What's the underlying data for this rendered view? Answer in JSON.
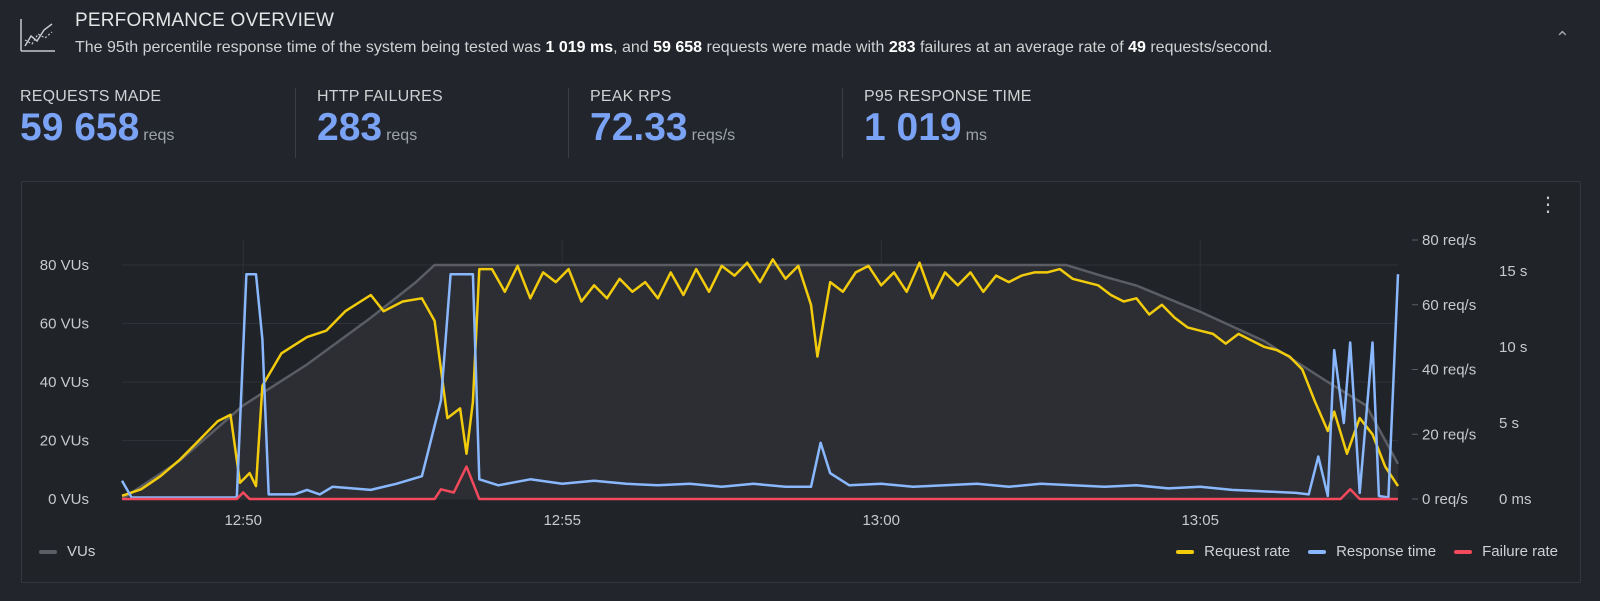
{
  "header": {
    "title": "PERFORMANCE OVERVIEW",
    "summary_parts": [
      {
        "text": "The 95th percentile response time of the system being tested was ",
        "bold": false
      },
      {
        "text": "1 019 ms",
        "bold": true
      },
      {
        "text": ", and ",
        "bold": false
      },
      {
        "text": "59 658",
        "bold": true
      },
      {
        "text": " requests were made with ",
        "bold": false
      },
      {
        "text": "283",
        "bold": true
      },
      {
        "text": " failures at an average rate of ",
        "bold": false
      },
      {
        "text": "49",
        "bold": true
      },
      {
        "text": " requests/second.",
        "bold": false
      }
    ],
    "collapse_icon": "chevron-up-icon",
    "icon": "line-chart-icon"
  },
  "stats": [
    {
      "label": "REQUESTS MADE",
      "value": "59 658",
      "unit": "reqs"
    },
    {
      "label": "HTTP FAILURES",
      "value": "283",
      "unit": "reqs"
    },
    {
      "label": "PEAK RPS",
      "value": "72.33",
      "unit": "reqs/s"
    },
    {
      "label": "P95 RESPONSE TIME",
      "value": "1 019",
      "unit": "ms"
    }
  ],
  "colors": {
    "accent": "#7ba3f5",
    "vus": "#5a5d63",
    "request_rate": "#f2cc0c",
    "response_time": "#8ab8ff",
    "failure_rate": "#f2495c"
  },
  "chart_data": {
    "type": "line",
    "x_ticks": [
      "12:50",
      "12:55",
      "13:00",
      "13:05"
    ],
    "x_tick_minutes": [
      50,
      55,
      60,
      65
    ],
    "x_range_minutes": [
      48.1,
      68.1
    ],
    "y_left": {
      "ticks": [
        "0 VUs",
        "20 VUs",
        "40 VUs",
        "60 VUs",
        "80 VUs"
      ],
      "range": [
        0,
        80
      ]
    },
    "y_right_rate": {
      "ticks": [
        "0 req/s",
        "20 req/s",
        "40 req/s",
        "60 req/s",
        "80 req/s"
      ],
      "range": [
        0,
        80
      ]
    },
    "y_right_time": {
      "ticks": [
        "0 ms",
        "5 s",
        "10 s",
        "15 s"
      ],
      "range_seconds": [
        0,
        15.6
      ]
    },
    "grid": true,
    "series": [
      {
        "name": "VUs",
        "axis": "left",
        "area": true,
        "points": [
          [
            48.1,
            0
          ],
          [
            49,
            13
          ],
          [
            50,
            32
          ],
          [
            51,
            46
          ],
          [
            52,
            62
          ],
          [
            52.7,
            74
          ],
          [
            53,
            80
          ],
          [
            60,
            80
          ],
          [
            62.9,
            80
          ],
          [
            63.5,
            76
          ],
          [
            64,
            73
          ],
          [
            65,
            64
          ],
          [
            66,
            54
          ],
          [
            67,
            40
          ],
          [
            67.6,
            32
          ],
          [
            68.1,
            12
          ]
        ]
      },
      {
        "name": "Request rate",
        "axis": "right_rate",
        "points": [
          [
            48.1,
            1
          ],
          [
            48.4,
            3
          ],
          [
            48.7,
            7
          ],
          [
            49,
            12
          ],
          [
            49.3,
            18
          ],
          [
            49.6,
            24
          ],
          [
            49.8,
            26
          ],
          [
            49.95,
            5
          ],
          [
            50.1,
            8
          ],
          [
            50.2,
            4
          ],
          [
            50.3,
            35
          ],
          [
            50.6,
            45
          ],
          [
            51,
            50
          ],
          [
            51.3,
            52
          ],
          [
            51.6,
            58
          ],
          [
            52,
            63
          ],
          [
            52.2,
            58
          ],
          [
            52.5,
            61
          ],
          [
            52.8,
            62
          ],
          [
            53,
            55
          ],
          [
            53.1,
            40
          ],
          [
            53.2,
            25
          ],
          [
            53.4,
            28
          ],
          [
            53.5,
            14
          ],
          [
            53.6,
            30
          ],
          [
            53.7,
            71
          ],
          [
            53.9,
            71
          ],
          [
            54.1,
            64
          ],
          [
            54.3,
            72
          ],
          [
            54.5,
            62
          ],
          [
            54.7,
            70
          ],
          [
            54.9,
            67
          ],
          [
            55.1,
            71
          ],
          [
            55.3,
            61
          ],
          [
            55.5,
            66
          ],
          [
            55.7,
            62
          ],
          [
            55.9,
            68
          ],
          [
            56.1,
            64
          ],
          [
            56.3,
            67
          ],
          [
            56.5,
            62
          ],
          [
            56.7,
            70
          ],
          [
            56.9,
            63
          ],
          [
            57.1,
            71
          ],
          [
            57.3,
            64
          ],
          [
            57.5,
            72
          ],
          [
            57.7,
            69
          ],
          [
            57.9,
            73
          ],
          [
            58.1,
            67
          ],
          [
            58.3,
            74
          ],
          [
            58.5,
            68
          ],
          [
            58.7,
            72
          ],
          [
            58.9,
            60
          ],
          [
            59,
            44
          ],
          [
            59.2,
            67
          ],
          [
            59.4,
            64
          ],
          [
            59.6,
            70
          ],
          [
            59.8,
            72
          ],
          [
            60,
            66
          ],
          [
            60.2,
            70
          ],
          [
            60.4,
            64
          ],
          [
            60.6,
            73
          ],
          [
            60.8,
            62
          ],
          [
            61,
            70
          ],
          [
            61.2,
            66
          ],
          [
            61.4,
            70
          ],
          [
            61.6,
            64
          ],
          [
            61.8,
            69
          ],
          [
            62,
            67
          ],
          [
            62.2,
            69
          ],
          [
            62.4,
            70
          ],
          [
            62.6,
            70
          ],
          [
            62.8,
            71
          ],
          [
            63,
            68
          ],
          [
            63.2,
            67
          ],
          [
            63.4,
            66
          ],
          [
            63.6,
            63
          ],
          [
            63.8,
            61
          ],
          [
            64,
            62
          ],
          [
            64.2,
            57
          ],
          [
            64.4,
            60
          ],
          [
            64.6,
            56
          ],
          [
            64.8,
            53
          ],
          [
            65,
            52
          ],
          [
            65.2,
            51
          ],
          [
            65.4,
            48
          ],
          [
            65.6,
            51
          ],
          [
            65.8,
            49
          ],
          [
            66,
            47
          ],
          [
            66.2,
            46
          ],
          [
            66.4,
            44
          ],
          [
            66.6,
            40
          ],
          [
            66.8,
            30
          ],
          [
            67,
            21
          ],
          [
            67.1,
            27
          ],
          [
            67.3,
            14
          ],
          [
            67.5,
            25
          ],
          [
            67.7,
            20
          ],
          [
            67.9,
            10
          ],
          [
            68.1,
            4
          ]
        ]
      },
      {
        "name": "Response time",
        "axis": "right_time_seconds",
        "points": [
          [
            48.1,
            1.2
          ],
          [
            48.25,
            0.1
          ],
          [
            49.9,
            0.1
          ],
          [
            50.05,
            14.8
          ],
          [
            50.2,
            14.8
          ],
          [
            50.3,
            10.5
          ],
          [
            50.4,
            0.3
          ],
          [
            50.8,
            0.3
          ],
          [
            51,
            0.6
          ],
          [
            51.2,
            0.3
          ],
          [
            51.4,
            0.8
          ],
          [
            52,
            0.6
          ],
          [
            52.4,
            1
          ],
          [
            52.8,
            1.5
          ],
          [
            53.1,
            6.5
          ],
          [
            53.25,
            14.8
          ],
          [
            53.6,
            14.8
          ],
          [
            53.7,
            1.3
          ],
          [
            54,
            0.9
          ],
          [
            54.5,
            1.3
          ],
          [
            55,
            1
          ],
          [
            55.5,
            1.2
          ],
          [
            56,
            1
          ],
          [
            56.5,
            0.9
          ],
          [
            57,
            1
          ],
          [
            57.5,
            0.8
          ],
          [
            58,
            1
          ],
          [
            58.5,
            0.8
          ],
          [
            58.9,
            0.8
          ],
          [
            59.05,
            3.7
          ],
          [
            59.2,
            1.7
          ],
          [
            59.5,
            0.9
          ],
          [
            60,
            1
          ],
          [
            60.5,
            0.8
          ],
          [
            61,
            0.9
          ],
          [
            61.5,
            1
          ],
          [
            62,
            0.8
          ],
          [
            62.5,
            1
          ],
          [
            63,
            0.9
          ],
          [
            63.5,
            0.8
          ],
          [
            64,
            0.9
          ],
          [
            64.5,
            0.7
          ],
          [
            65,
            0.8
          ],
          [
            65.5,
            0.6
          ],
          [
            66,
            0.5
          ],
          [
            66.5,
            0.4
          ],
          [
            66.7,
            0.3
          ],
          [
            66.85,
            2.8
          ],
          [
            67,
            0.2
          ],
          [
            67.1,
            9.8
          ],
          [
            67.25,
            5
          ],
          [
            67.35,
            10.3
          ],
          [
            67.5,
            0.4
          ],
          [
            67.7,
            10.3
          ],
          [
            67.8,
            0.2
          ],
          [
            67.95,
            0.1
          ],
          [
            68.1,
            14.8
          ]
        ]
      },
      {
        "name": "Failure rate",
        "axis": "right_rate",
        "points": [
          [
            48.1,
            0
          ],
          [
            49.9,
            0
          ],
          [
            50,
            2
          ],
          [
            50.1,
            0
          ],
          [
            53,
            0
          ],
          [
            53.1,
            3
          ],
          [
            53.3,
            2
          ],
          [
            53.5,
            10
          ],
          [
            53.7,
            0
          ],
          [
            63.5,
            0
          ],
          [
            67.2,
            0
          ],
          [
            67.35,
            3
          ],
          [
            67.5,
            0
          ],
          [
            68.1,
            0
          ]
        ]
      }
    ]
  }
}
